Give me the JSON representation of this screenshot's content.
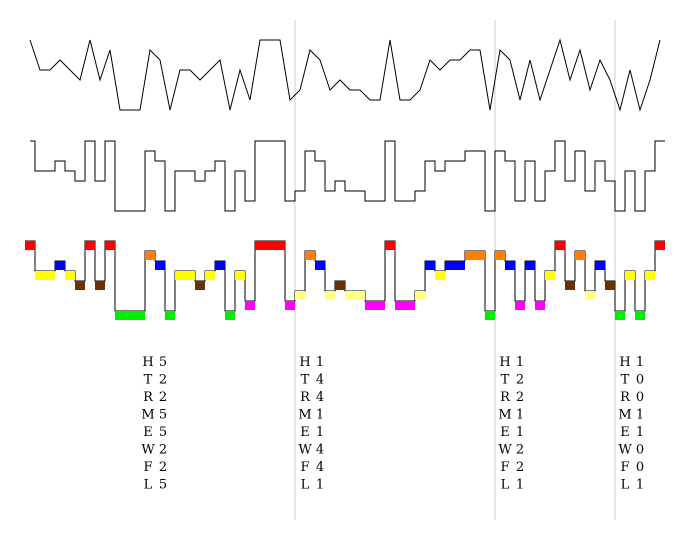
{
  "chart_data": {
    "type": "line",
    "title": "",
    "xlabel": "",
    "ylabel": "",
    "grid": false,
    "legend": "none",
    "x": [
      0,
      1,
      2,
      3,
      4,
      5,
      6,
      7,
      8,
      9,
      10,
      11,
      12,
      13,
      14,
      15,
      16,
      17,
      18,
      19,
      20,
      21,
      22,
      23,
      24,
      25,
      26,
      27,
      28,
      29,
      30,
      31,
      32,
      33,
      34,
      35,
      36,
      37,
      38,
      39,
      40,
      41,
      42,
      43,
      44,
      45,
      46,
      47,
      48,
      49,
      50,
      51,
      52,
      53,
      54,
      55,
      56,
      57,
      58,
      59,
      60,
      61,
      62,
      63
    ],
    "separators": [
      27,
      47,
      59
    ],
    "series": [
      {
        "style": "line",
        "ylim": [
          0,
          7
        ],
        "values": [
          7,
          4,
          4,
          5,
          4,
          3,
          7,
          3,
          6,
          0,
          0,
          0,
          6,
          5,
          0,
          4,
          4,
          3,
          4,
          5,
          0,
          4,
          1,
          7,
          7,
          7,
          1,
          2,
          6,
          5,
          2,
          3,
          2,
          2,
          1,
          1,
          7,
          1,
          1,
          2,
          5,
          4,
          5,
          5,
          6,
          6,
          0,
          6,
          5,
          1,
          5,
          1,
          4,
          7,
          3,
          6,
          2,
          5,
          3,
          0,
          4,
          0,
          3,
          7
        ]
      },
      {
        "style": "step",
        "ylim": [
          0,
          7
        ],
        "values": [
          7,
          4,
          4,
          5,
          4,
          3,
          7,
          3,
          7,
          0,
          0,
          0,
          6,
          5,
          0,
          4,
          4,
          3,
          4,
          5,
          0,
          4,
          1,
          7,
          7,
          7,
          1,
          2,
          6,
          5,
          2,
          3,
          2,
          2,
          1,
          1,
          7,
          1,
          1,
          2,
          5,
          4,
          5,
          5,
          6,
          6,
          0,
          6,
          5,
          1,
          5,
          1,
          4,
          7,
          3,
          6,
          2,
          5,
          3,
          0,
          4,
          0,
          4,
          7
        ]
      },
      {
        "style": "colored-step",
        "ylim": [
          0,
          7
        ],
        "values": [
          7,
          4,
          4,
          5,
          4,
          3,
          7,
          3,
          7,
          0,
          0,
          0,
          6,
          5,
          0,
          4,
          4,
          3,
          4,
          5,
          0,
          4,
          1,
          7,
          7,
          7,
          1,
          2,
          6,
          5,
          2,
          3,
          2,
          2,
          1,
          1,
          7,
          1,
          1,
          2,
          5,
          4,
          5,
          5,
          6,
          6,
          0,
          6,
          5,
          1,
          5,
          1,
          4,
          7,
          3,
          6,
          2,
          5,
          3,
          0,
          4,
          0,
          4,
          7
        ],
        "palette": [
          "#00ee00",
          "#ff00ff",
          "#ffff88",
          "#663300",
          "#ffff00",
          "#0000ff",
          "#ff8000",
          "#ff0000"
        ]
      }
    ],
    "table_rows": [
      "H",
      "T",
      "R",
      "M",
      "E",
      "W",
      "F",
      "L"
    ],
    "tables": [
      {
        "start": 0,
        "values": [
          5,
          2,
          2,
          5,
          5,
          2,
          2,
          5
        ]
      },
      {
        "start": 27,
        "values": [
          1,
          4,
          4,
          1,
          1,
          4,
          4,
          1
        ]
      },
      {
        "start": 47,
        "values": [
          1,
          2,
          2,
          1,
          1,
          2,
          2,
          1
        ]
      },
      {
        "start": 59,
        "values": [
          1,
          0,
          0,
          1,
          1,
          0,
          0,
          1
        ]
      }
    ]
  }
}
